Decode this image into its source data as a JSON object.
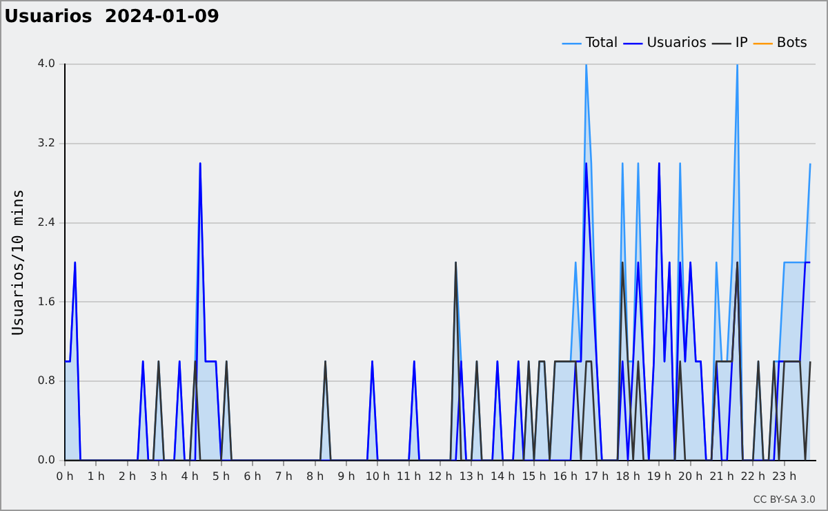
{
  "chart_data": {
    "type": "line",
    "title": "Usuarios  2024-01-09",
    "ylabel": "Usuarios/10 mins",
    "annotations": [
      "CC BY-SA 3.0"
    ],
    "x": [
      0,
      0.17,
      0.33,
      0.5,
      0.67,
      0.83,
      1,
      1.17,
      1.33,
      1.5,
      1.67,
      1.83,
      2,
      2.17,
      2.33,
      2.5,
      2.67,
      2.83,
      3,
      3.17,
      3.33,
      3.5,
      3.67,
      3.83,
      4,
      4.17,
      4.33,
      4.5,
      4.67,
      4.83,
      5,
      5.17,
      5.33,
      5.5,
      5.67,
      5.83,
      6,
      6.17,
      6.33,
      6.5,
      6.67,
      6.83,
      7,
      7.17,
      7.33,
      7.5,
      7.67,
      7.83,
      8,
      8.17,
      8.33,
      8.5,
      8.67,
      8.83,
      9,
      9.17,
      9.33,
      9.5,
      9.67,
      9.83,
      10,
      10.17,
      10.33,
      10.5,
      10.67,
      10.83,
      11,
      11.17,
      11.33,
      11.5,
      11.67,
      11.83,
      12,
      12.17,
      12.33,
      12.5,
      12.67,
      12.83,
      13,
      13.17,
      13.33,
      13.5,
      13.67,
      13.83,
      14,
      14.17,
      14.33,
      14.5,
      14.67,
      14.83,
      15,
      15.17,
      15.33,
      15.5,
      15.67,
      15.83,
      16,
      16.17,
      16.33,
      16.5,
      16.67,
      16.83,
      17,
      17.17,
      17.33,
      17.5,
      17.67,
      17.83,
      18,
      18.17,
      18.33,
      18.5,
      18.67,
      18.83,
      19,
      19.17,
      19.33,
      19.5,
      19.67,
      19.83,
      20,
      20.17,
      20.33,
      20.5,
      20.67,
      20.83,
      21,
      21.17,
      21.33,
      21.5,
      21.67,
      21.83,
      22,
      22.17,
      22.33,
      22.5,
      22.67,
      22.83,
      23,
      23.17,
      23.33,
      23.5,
      23.67,
      23.83
    ],
    "series": [
      {
        "name": "Total",
        "type": "area",
        "color": "#3399ff",
        "values": [
          1,
          1,
          2,
          0,
          0,
          0,
          0,
          0,
          0,
          0,
          0,
          0,
          0,
          0,
          0,
          1,
          0,
          0,
          1,
          0,
          0,
          0,
          1,
          0,
          0,
          1,
          3,
          1,
          1,
          1,
          0,
          1,
          0,
          0,
          0,
          0,
          0,
          0,
          0,
          0,
          0,
          0,
          0,
          0,
          0,
          0,
          0,
          0,
          0,
          0,
          1,
          0,
          0,
          0,
          0,
          0,
          0,
          0,
          0,
          1,
          0,
          0,
          0,
          0,
          0,
          0,
          0,
          1,
          0,
          0,
          0,
          0,
          0,
          0,
          0,
          2,
          1,
          0,
          0,
          1,
          0,
          0,
          0,
          1,
          0,
          0,
          0,
          1,
          0,
          1,
          0,
          1,
          1,
          0,
          1,
          1,
          1,
          1,
          2,
          1,
          4,
          3,
          1,
          0,
          0,
          0,
          0,
          3,
          1,
          1,
          3,
          1,
          0,
          1,
          3,
          1,
          2,
          0,
          3,
          1,
          2,
          1,
          1,
          0,
          0,
          2,
          1,
          1,
          2,
          4,
          0,
          0,
          0,
          1,
          0,
          0,
          1,
          1,
          2,
          2,
          2,
          2,
          2,
          3
        ]
      },
      {
        "name": "Usuarios",
        "type": "line",
        "color": "#0000ff",
        "values": [
          1,
          1,
          2,
          0,
          0,
          0,
          0,
          0,
          0,
          0,
          0,
          0,
          0,
          0,
          0,
          1,
          0,
          0,
          0,
          0,
          0,
          0,
          1,
          0,
          0,
          0,
          3,
          1,
          1,
          1,
          0,
          0,
          0,
          0,
          0,
          0,
          0,
          0,
          0,
          0,
          0,
          0,
          0,
          0,
          0,
          0,
          0,
          0,
          0,
          0,
          0,
          0,
          0,
          0,
          0,
          0,
          0,
          0,
          0,
          1,
          0,
          0,
          0,
          0,
          0,
          0,
          0,
          1,
          0,
          0,
          0,
          0,
          0,
          0,
          0,
          0,
          1,
          0,
          0,
          0,
          0,
          0,
          0,
          1,
          0,
          0,
          0,
          1,
          0,
          0,
          0,
          0,
          0,
          0,
          0,
          0,
          0,
          0,
          1,
          1,
          3,
          2,
          1,
          0,
          0,
          0,
          0,
          1,
          0,
          1,
          2,
          1,
          0,
          1,
          3,
          1,
          2,
          0,
          2,
          1,
          2,
          1,
          1,
          0,
          0,
          1,
          0,
          0,
          1,
          2,
          0,
          0,
          0,
          0,
          0,
          0,
          0,
          1,
          1,
          1,
          1,
          1,
          2,
          2
        ]
      },
      {
        "name": "IP",
        "type": "line",
        "color": "#333333",
        "values": [
          0,
          0,
          0,
          0,
          0,
          0,
          0,
          0,
          0,
          0,
          0,
          0,
          0,
          0,
          0,
          0,
          0,
          0,
          1,
          0,
          0,
          0,
          0,
          0,
          0,
          1,
          0,
          0,
          0,
          0,
          0,
          1,
          0,
          0,
          0,
          0,
          0,
          0,
          0,
          0,
          0,
          0,
          0,
          0,
          0,
          0,
          0,
          0,
          0,
          0,
          1,
          0,
          0,
          0,
          0,
          0,
          0,
          0,
          0,
          0,
          0,
          0,
          0,
          0,
          0,
          0,
          0,
          0,
          0,
          0,
          0,
          0,
          0,
          0,
          0,
          2,
          0,
          0,
          0,
          1,
          0,
          0,
          0,
          0,
          0,
          0,
          0,
          0,
          0,
          1,
          0,
          1,
          1,
          0,
          1,
          1,
          1,
          1,
          1,
          0,
          1,
          1,
          0,
          0,
          0,
          0,
          0,
          2,
          1,
          0,
          1,
          0,
          0,
          0,
          0,
          0,
          0,
          0,
          1,
          0,
          0,
          0,
          0,
          0,
          0,
          1,
          1,
          1,
          1,
          2,
          0,
          0,
          0,
          1,
          0,
          0,
          1,
          0,
          1,
          1,
          1,
          1,
          0,
          1
        ]
      },
      {
        "name": "Bots",
        "color": "#ff9900",
        "values": [
          null,
          null,
          null,
          null,
          null,
          null,
          null,
          null,
          null,
          null,
          null,
          null,
          null,
          null,
          null,
          null,
          null,
          null,
          null,
          null,
          null,
          null,
          null,
          null,
          null,
          null,
          null,
          null,
          null,
          null,
          null,
          null,
          null,
          null,
          null,
          null,
          null,
          null,
          null,
          null,
          null,
          null,
          null,
          null,
          null,
          null,
          null,
          null,
          null,
          null,
          null,
          null,
          null,
          null,
          null,
          null,
          null,
          null,
          null,
          null,
          null,
          null,
          null,
          null,
          null,
          null,
          null,
          null,
          null,
          null,
          null,
          null,
          null,
          null,
          null,
          null,
          null,
          null,
          null,
          null,
          null,
          null,
          null,
          null,
          null,
          null,
          null,
          null,
          null,
          null,
          null,
          null,
          null,
          null,
          null,
          null,
          null,
          null,
          null,
          null,
          null,
          null,
          null,
          null,
          null,
          null,
          null,
          null,
          null,
          null,
          null,
          null,
          null,
          null,
          null,
          null,
          null,
          null,
          null,
          null,
          null,
          null,
          null,
          null,
          null,
          null,
          null,
          null,
          null,
          null,
          null,
          null,
          null,
          null,
          null,
          null,
          null,
          null,
          null,
          null,
          null,
          null,
          null,
          null
        ]
      }
    ],
    "xlim": [
      0,
      24
    ],
    "xticks": [
      {
        "value": 0,
        "label": "0 h"
      },
      {
        "value": 1,
        "label": "1 h"
      },
      {
        "value": 2,
        "label": "2 h"
      },
      {
        "value": 3,
        "label": "3 h"
      },
      {
        "value": 4,
        "label": "4 h"
      },
      {
        "value": 5,
        "label": "5 h"
      },
      {
        "value": 6,
        "label": "6 h"
      },
      {
        "value": 7,
        "label": "7 h"
      },
      {
        "value": 8,
        "label": "8 h"
      },
      {
        "value": 9,
        "label": "9 h"
      },
      {
        "value": 10,
        "label": "10 h"
      },
      {
        "value": 11,
        "label": "11 h"
      },
      {
        "value": 12,
        "label": "12 h"
      },
      {
        "value": 13,
        "label": "13 h"
      },
      {
        "value": 14,
        "label": "14 h"
      },
      {
        "value": 15,
        "label": "15 h"
      },
      {
        "value": 16,
        "label": "16 h"
      },
      {
        "value": 17,
        "label": "17 h"
      },
      {
        "value": 18,
        "label": "18 h"
      },
      {
        "value": 19,
        "label": "19 h"
      },
      {
        "value": 20,
        "label": "20 h"
      },
      {
        "value": 21,
        "label": "21 h"
      },
      {
        "value": 22,
        "label": "22 h"
      },
      {
        "value": 23,
        "label": "23 h"
      }
    ],
    "ylim": [
      0,
      4
    ],
    "yticks": [
      {
        "value": 0,
        "label": "0.0"
      },
      0.8,
      1.6,
      2.4,
      3.2,
      {
        "value": 4,
        "label": "4.0"
      }
    ],
    "grid": "y",
    "legend": "top right",
    "marker": "none",
    "line_style": "solid"
  }
}
